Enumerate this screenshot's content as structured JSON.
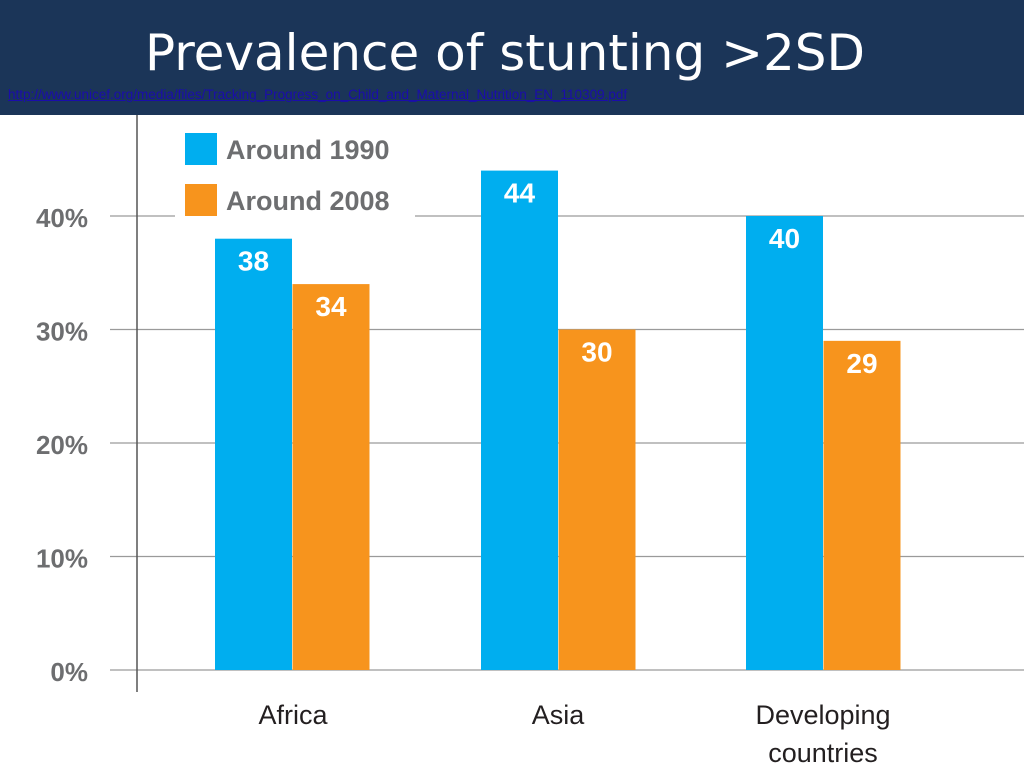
{
  "slide": {
    "title": "Prevalence of stunting >2SD",
    "source_link": "http://www.unicef.org/media/files/Tracking_Progress_on_Child_and_Maternal_Nutrition_EN_110309.pdf"
  },
  "chart_data": {
    "type": "bar",
    "categories": [
      [
        "Africa"
      ],
      [
        "Asia"
      ],
      [
        "Developing",
        "countries"
      ]
    ],
    "series": [
      {
        "name": "Around 1990",
        "values": [
          38,
          44,
          40
        ],
        "color": "#00aeef"
      },
      {
        "name": "Around 2008",
        "values": [
          34,
          30,
          29
        ],
        "color": "#f7941d"
      }
    ],
    "yticks": [
      "0%",
      "10%",
      "20%",
      "30%",
      "40%"
    ],
    "ylim": [
      0,
      50
    ],
    "grid": true,
    "legend_position": "top-left"
  }
}
